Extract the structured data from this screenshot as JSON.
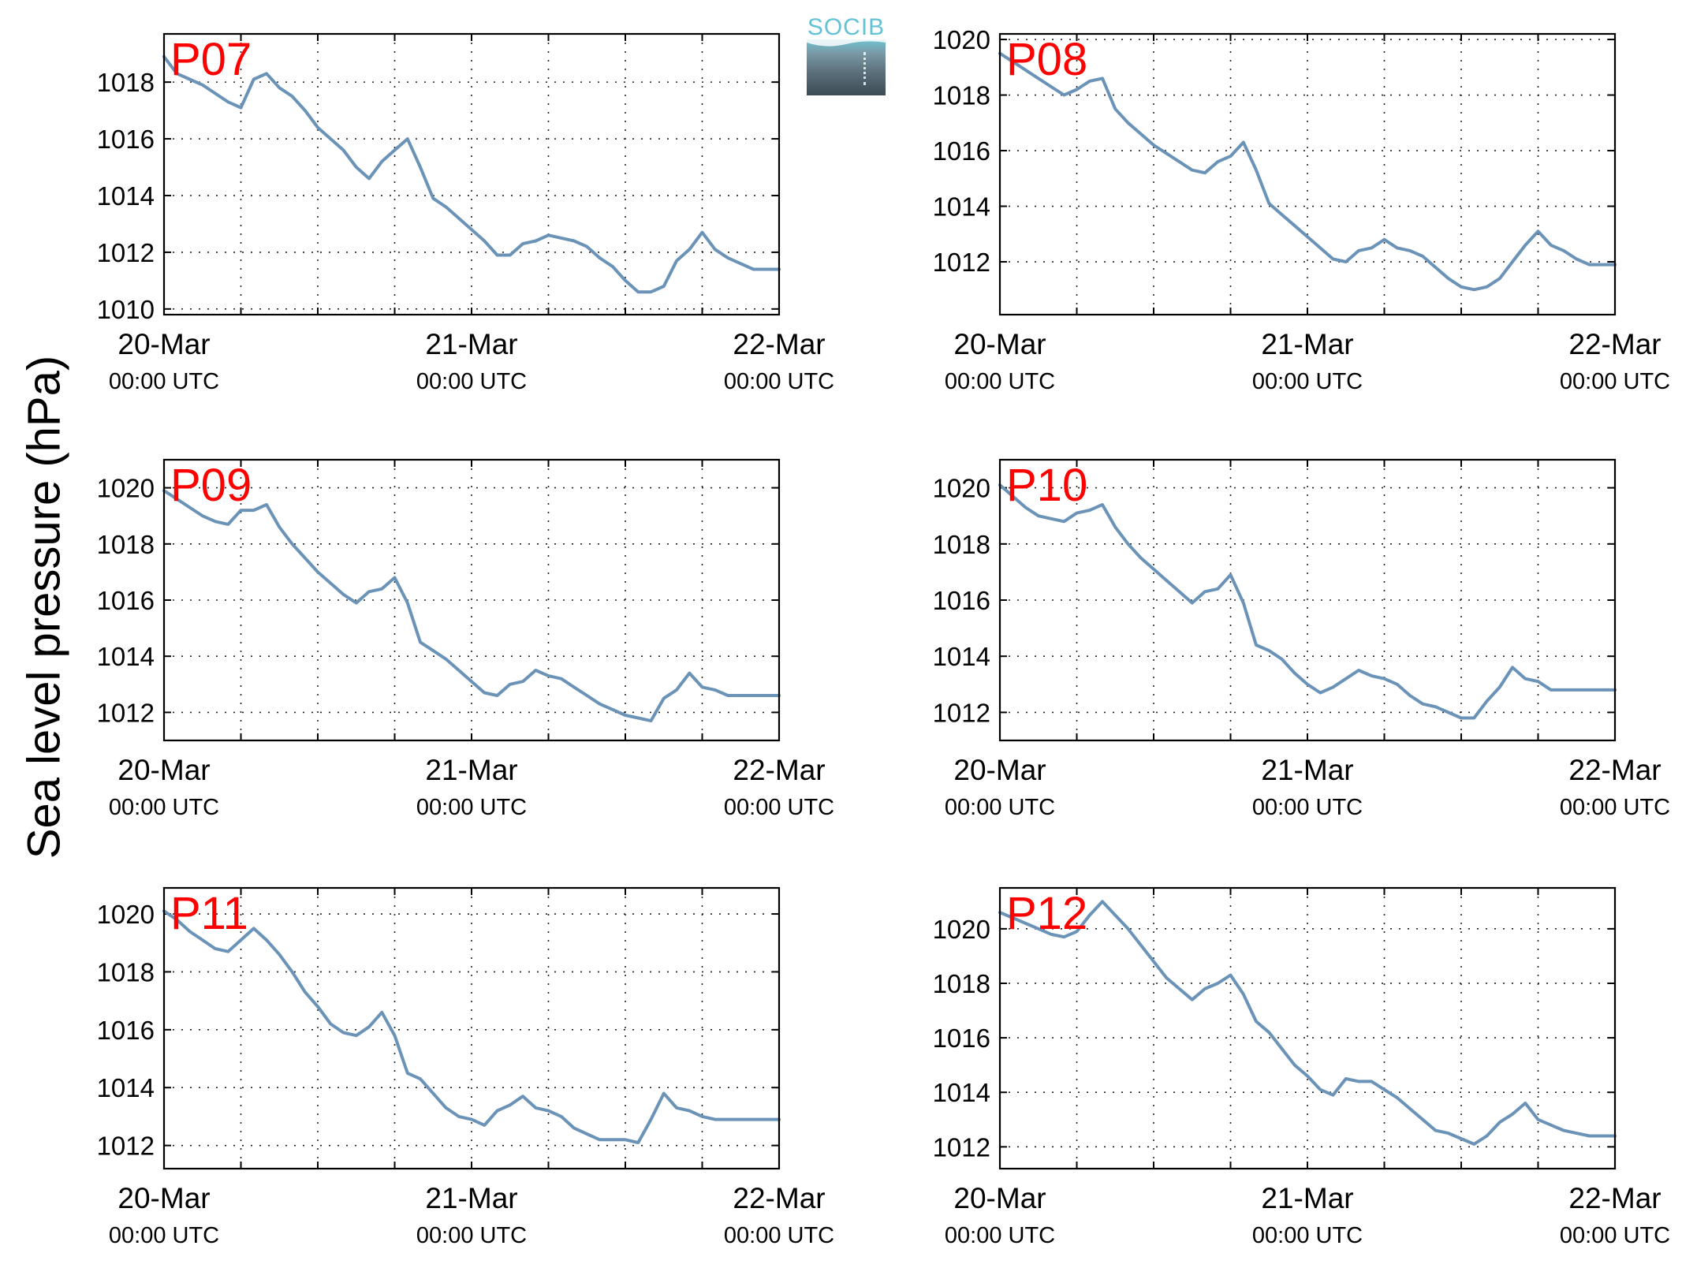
{
  "figure": {
    "ylabel": "Sea level pressure (hPa)",
    "logo_text": "SOCIB",
    "line_color": "#6a93b7",
    "label_color": "#ff0000"
  },
  "chart_data": [
    {
      "type": "line",
      "label": "P07",
      "x_tick_labels": [
        [
          "20-Mar",
          "00:00 UTC"
        ],
        [
          "21-Mar",
          "00:00 UTC"
        ],
        [
          "22-Mar",
          "00:00 UTC"
        ]
      ],
      "x_unit": "hours since 20-Mar 00:00 UTC",
      "xlim": [
        0,
        48
      ],
      "ylim": [
        1009.8,
        1019.7
      ],
      "yticks": [
        1010,
        1012,
        1014,
        1016,
        1018
      ],
      "grid": true,
      "x": [
        0,
        1,
        2,
        3,
        4,
        5,
        6,
        7,
        8,
        9,
        10,
        11,
        12,
        13,
        14,
        15,
        16,
        17,
        18,
        19,
        20,
        21,
        22,
        23,
        24,
        25,
        26,
        27,
        28,
        29,
        30,
        31,
        32,
        33,
        34,
        35,
        36,
        37,
        38,
        39,
        40,
        41,
        42,
        43,
        44,
        45,
        46,
        47,
        48
      ],
      "y": [
        1018.9,
        1018.3,
        1018.1,
        1017.9,
        1017.6,
        1017.3,
        1017.1,
        1018.1,
        1018.3,
        1017.8,
        1017.5,
        1017.0,
        1016.4,
        1016.0,
        1015.6,
        1015.0,
        1014.6,
        1015.2,
        1015.6,
        1016.0,
        1015.0,
        1013.9,
        1013.6,
        1013.2,
        1012.8,
        1012.4,
        1011.9,
        1011.9,
        1012.3,
        1012.4,
        1012.6,
        1012.5,
        1012.4,
        1012.2,
        1011.8,
        1011.5,
        1011.0,
        1010.6,
        1010.6,
        1010.8,
        1011.7,
        1012.1,
        1012.7,
        1012.1,
        1011.8,
        1011.6,
        1011.4,
        1011.4,
        1011.4
      ]
    },
    {
      "type": "line",
      "label": "P08",
      "x_tick_labels": [
        [
          "20-Mar",
          "00:00 UTC"
        ],
        [
          "21-Mar",
          "00:00 UTC"
        ],
        [
          "22-Mar",
          "00:00 UTC"
        ]
      ],
      "x_unit": "hours since 20-Mar 00:00 UTC",
      "xlim": [
        0,
        48
      ],
      "ylim": [
        1010.1,
        1020.2
      ],
      "yticks": [
        1012,
        1014,
        1016,
        1018,
        1020
      ],
      "grid": true,
      "x": [
        0,
        1,
        2,
        3,
        4,
        5,
        6,
        7,
        8,
        9,
        10,
        11,
        12,
        13,
        14,
        15,
        16,
        17,
        18,
        19,
        20,
        21,
        22,
        23,
        24,
        25,
        26,
        27,
        28,
        29,
        30,
        31,
        32,
        33,
        34,
        35,
        36,
        37,
        38,
        39,
        40,
        41,
        42,
        43,
        44,
        45,
        46,
        47,
        48
      ],
      "y": [
        1019.5,
        1019.2,
        1018.9,
        1018.6,
        1018.3,
        1018.0,
        1018.2,
        1018.5,
        1018.6,
        1017.5,
        1017.0,
        1016.6,
        1016.2,
        1015.9,
        1015.6,
        1015.3,
        1015.2,
        1015.6,
        1015.8,
        1016.3,
        1015.3,
        1014.1,
        1013.7,
        1013.3,
        1012.9,
        1012.5,
        1012.1,
        1012.0,
        1012.4,
        1012.5,
        1012.8,
        1012.5,
        1012.4,
        1012.2,
        1011.8,
        1011.4,
        1011.1,
        1011.0,
        1011.1,
        1011.4,
        1012.0,
        1012.6,
        1013.1,
        1012.6,
        1012.4,
        1012.1,
        1011.9,
        1011.9,
        1011.9
      ]
    },
    {
      "type": "line",
      "label": "P09",
      "x_tick_labels": [
        [
          "20-Mar",
          "00:00 UTC"
        ],
        [
          "21-Mar",
          "00:00 UTC"
        ],
        [
          "22-Mar",
          "00:00 UTC"
        ]
      ],
      "x_unit": "hours since 20-Mar 00:00 UTC",
      "xlim": [
        0,
        48
      ],
      "ylim": [
        1011.0,
        1021.0
      ],
      "yticks": [
        1012,
        1014,
        1016,
        1018,
        1020
      ],
      "grid": true,
      "x": [
        0,
        1,
        2,
        3,
        4,
        5,
        6,
        7,
        8,
        9,
        10,
        11,
        12,
        13,
        14,
        15,
        16,
        17,
        18,
        19,
        20,
        21,
        22,
        23,
        24,
        25,
        26,
        27,
        28,
        29,
        30,
        31,
        32,
        33,
        34,
        35,
        36,
        37,
        38,
        39,
        40,
        41,
        42,
        43,
        44,
        45,
        46,
        47,
        48
      ],
      "y": [
        1019.9,
        1019.6,
        1019.3,
        1019.0,
        1018.8,
        1018.7,
        1019.2,
        1019.2,
        1019.4,
        1018.6,
        1018.0,
        1017.5,
        1017.0,
        1016.6,
        1016.2,
        1015.9,
        1016.3,
        1016.4,
        1016.8,
        1015.9,
        1014.5,
        1014.2,
        1013.9,
        1013.5,
        1013.1,
        1012.7,
        1012.6,
        1013.0,
        1013.1,
        1013.5,
        1013.3,
        1013.2,
        1012.9,
        1012.6,
        1012.3,
        1012.1,
        1011.9,
        1011.8,
        1011.7,
        1012.5,
        1012.8,
        1013.4,
        1012.9,
        1012.8,
        1012.6,
        1012.6,
        1012.6,
        1012.6,
        1012.6
      ]
    },
    {
      "type": "line",
      "label": "P10",
      "x_tick_labels": [
        [
          "20-Mar",
          "00:00 UTC"
        ],
        [
          "21-Mar",
          "00:00 UTC"
        ],
        [
          "22-Mar",
          "00:00 UTC"
        ]
      ],
      "x_unit": "hours since 20-Mar 00:00 UTC",
      "xlim": [
        0,
        48
      ],
      "ylim": [
        1011.0,
        1021.0
      ],
      "yticks": [
        1012,
        1014,
        1016,
        1018,
        1020
      ],
      "grid": true,
      "x": [
        0,
        1,
        2,
        3,
        4,
        5,
        6,
        7,
        8,
        9,
        10,
        11,
        12,
        13,
        14,
        15,
        16,
        17,
        18,
        19,
        20,
        21,
        22,
        23,
        24,
        25,
        26,
        27,
        28,
        29,
        30,
        31,
        32,
        33,
        34,
        35,
        36,
        37,
        38,
        39,
        40,
        41,
        42,
        43,
        44,
        45,
        46,
        47,
        48
      ],
      "y": [
        1020.1,
        1019.7,
        1019.3,
        1019.0,
        1018.9,
        1018.8,
        1019.1,
        1019.2,
        1019.4,
        1018.6,
        1018.0,
        1017.5,
        1017.1,
        1016.7,
        1016.3,
        1015.9,
        1016.3,
        1016.4,
        1016.9,
        1015.9,
        1014.4,
        1014.2,
        1013.9,
        1013.4,
        1013.0,
        1012.7,
        1012.9,
        1013.2,
        1013.5,
        1013.3,
        1013.2,
        1013.0,
        1012.6,
        1012.3,
        1012.2,
        1012.0,
        1011.8,
        1011.8,
        1012.4,
        1012.9,
        1013.6,
        1013.2,
        1013.1,
        1012.8,
        1012.8,
        1012.8,
        1012.8,
        1012.8,
        1012.8
      ]
    },
    {
      "type": "line",
      "label": "P11",
      "x_tick_labels": [
        [
          "20-Mar",
          "00:00 UTC"
        ],
        [
          "21-Mar",
          "00:00 UTC"
        ],
        [
          "22-Mar",
          "00:00 UTC"
        ]
      ],
      "x_unit": "hours since 20-Mar 00:00 UTC",
      "xlim": [
        0,
        48
      ],
      "ylim": [
        1011.2,
        1020.9
      ],
      "yticks": [
        1012,
        1014,
        1016,
        1018,
        1020
      ],
      "grid": true,
      "x": [
        0,
        1,
        2,
        3,
        4,
        5,
        6,
        7,
        8,
        9,
        10,
        11,
        12,
        13,
        14,
        15,
        16,
        17,
        18,
        19,
        20,
        21,
        22,
        23,
        24,
        25,
        26,
        27,
        28,
        29,
        30,
        31,
        32,
        33,
        34,
        35,
        36,
        37,
        38,
        39,
        40,
        41,
        42,
        43,
        44,
        45,
        46,
        47,
        48
      ],
      "y": [
        1020.1,
        1019.8,
        1019.4,
        1019.1,
        1018.8,
        1018.7,
        1019.1,
        1019.5,
        1019.1,
        1018.6,
        1018.0,
        1017.3,
        1016.8,
        1016.2,
        1015.9,
        1015.8,
        1016.1,
        1016.6,
        1015.8,
        1014.5,
        1014.3,
        1013.8,
        1013.3,
        1013.0,
        1012.9,
        1012.7,
        1013.2,
        1013.4,
        1013.7,
        1013.3,
        1013.2,
        1013.0,
        1012.6,
        1012.4,
        1012.2,
        1012.2,
        1012.2,
        1012.1,
        1012.9,
        1013.8,
        1013.3,
        1013.2,
        1013.0,
        1012.9,
        1012.9,
        1012.9,
        1012.9,
        1012.9,
        1012.9
      ]
    },
    {
      "type": "line",
      "label": "P12",
      "x_tick_labels": [
        [
          "20-Mar",
          "00:00 UTC"
        ],
        [
          "21-Mar",
          "00:00 UTC"
        ],
        [
          "22-Mar",
          "00:00 UTC"
        ]
      ],
      "x_unit": "hours since 20-Mar 00:00 UTC",
      "xlim": [
        0,
        48
      ],
      "ylim": [
        1011.2,
        1021.5
      ],
      "yticks": [
        1012,
        1014,
        1016,
        1018,
        1020
      ],
      "grid": true,
      "x": [
        0,
        1,
        2,
        3,
        4,
        5,
        6,
        7,
        8,
        9,
        10,
        11,
        12,
        13,
        14,
        15,
        16,
        17,
        18,
        19,
        20,
        21,
        22,
        23,
        24,
        25,
        26,
        27,
        28,
        29,
        30,
        31,
        32,
        33,
        34,
        35,
        36,
        37,
        38,
        39,
        40,
        41,
        42,
        43,
        44,
        45,
        46,
        47,
        48
      ],
      "y": [
        1020.6,
        1020.4,
        1020.2,
        1020.0,
        1019.8,
        1019.7,
        1019.9,
        1020.5,
        1021.0,
        1020.5,
        1020.0,
        1019.4,
        1018.8,
        1018.2,
        1017.8,
        1017.4,
        1017.8,
        1018.0,
        1018.3,
        1017.6,
        1016.6,
        1016.2,
        1015.6,
        1015.0,
        1014.6,
        1014.1,
        1013.9,
        1014.5,
        1014.4,
        1014.4,
        1014.1,
        1013.8,
        1013.4,
        1013.0,
        1012.6,
        1012.5,
        1012.3,
        1012.1,
        1012.4,
        1012.9,
        1013.2,
        1013.6,
        1013.0,
        1012.8,
        1012.6,
        1012.5,
        1012.4,
        1012.4,
        1012.4
      ]
    }
  ]
}
